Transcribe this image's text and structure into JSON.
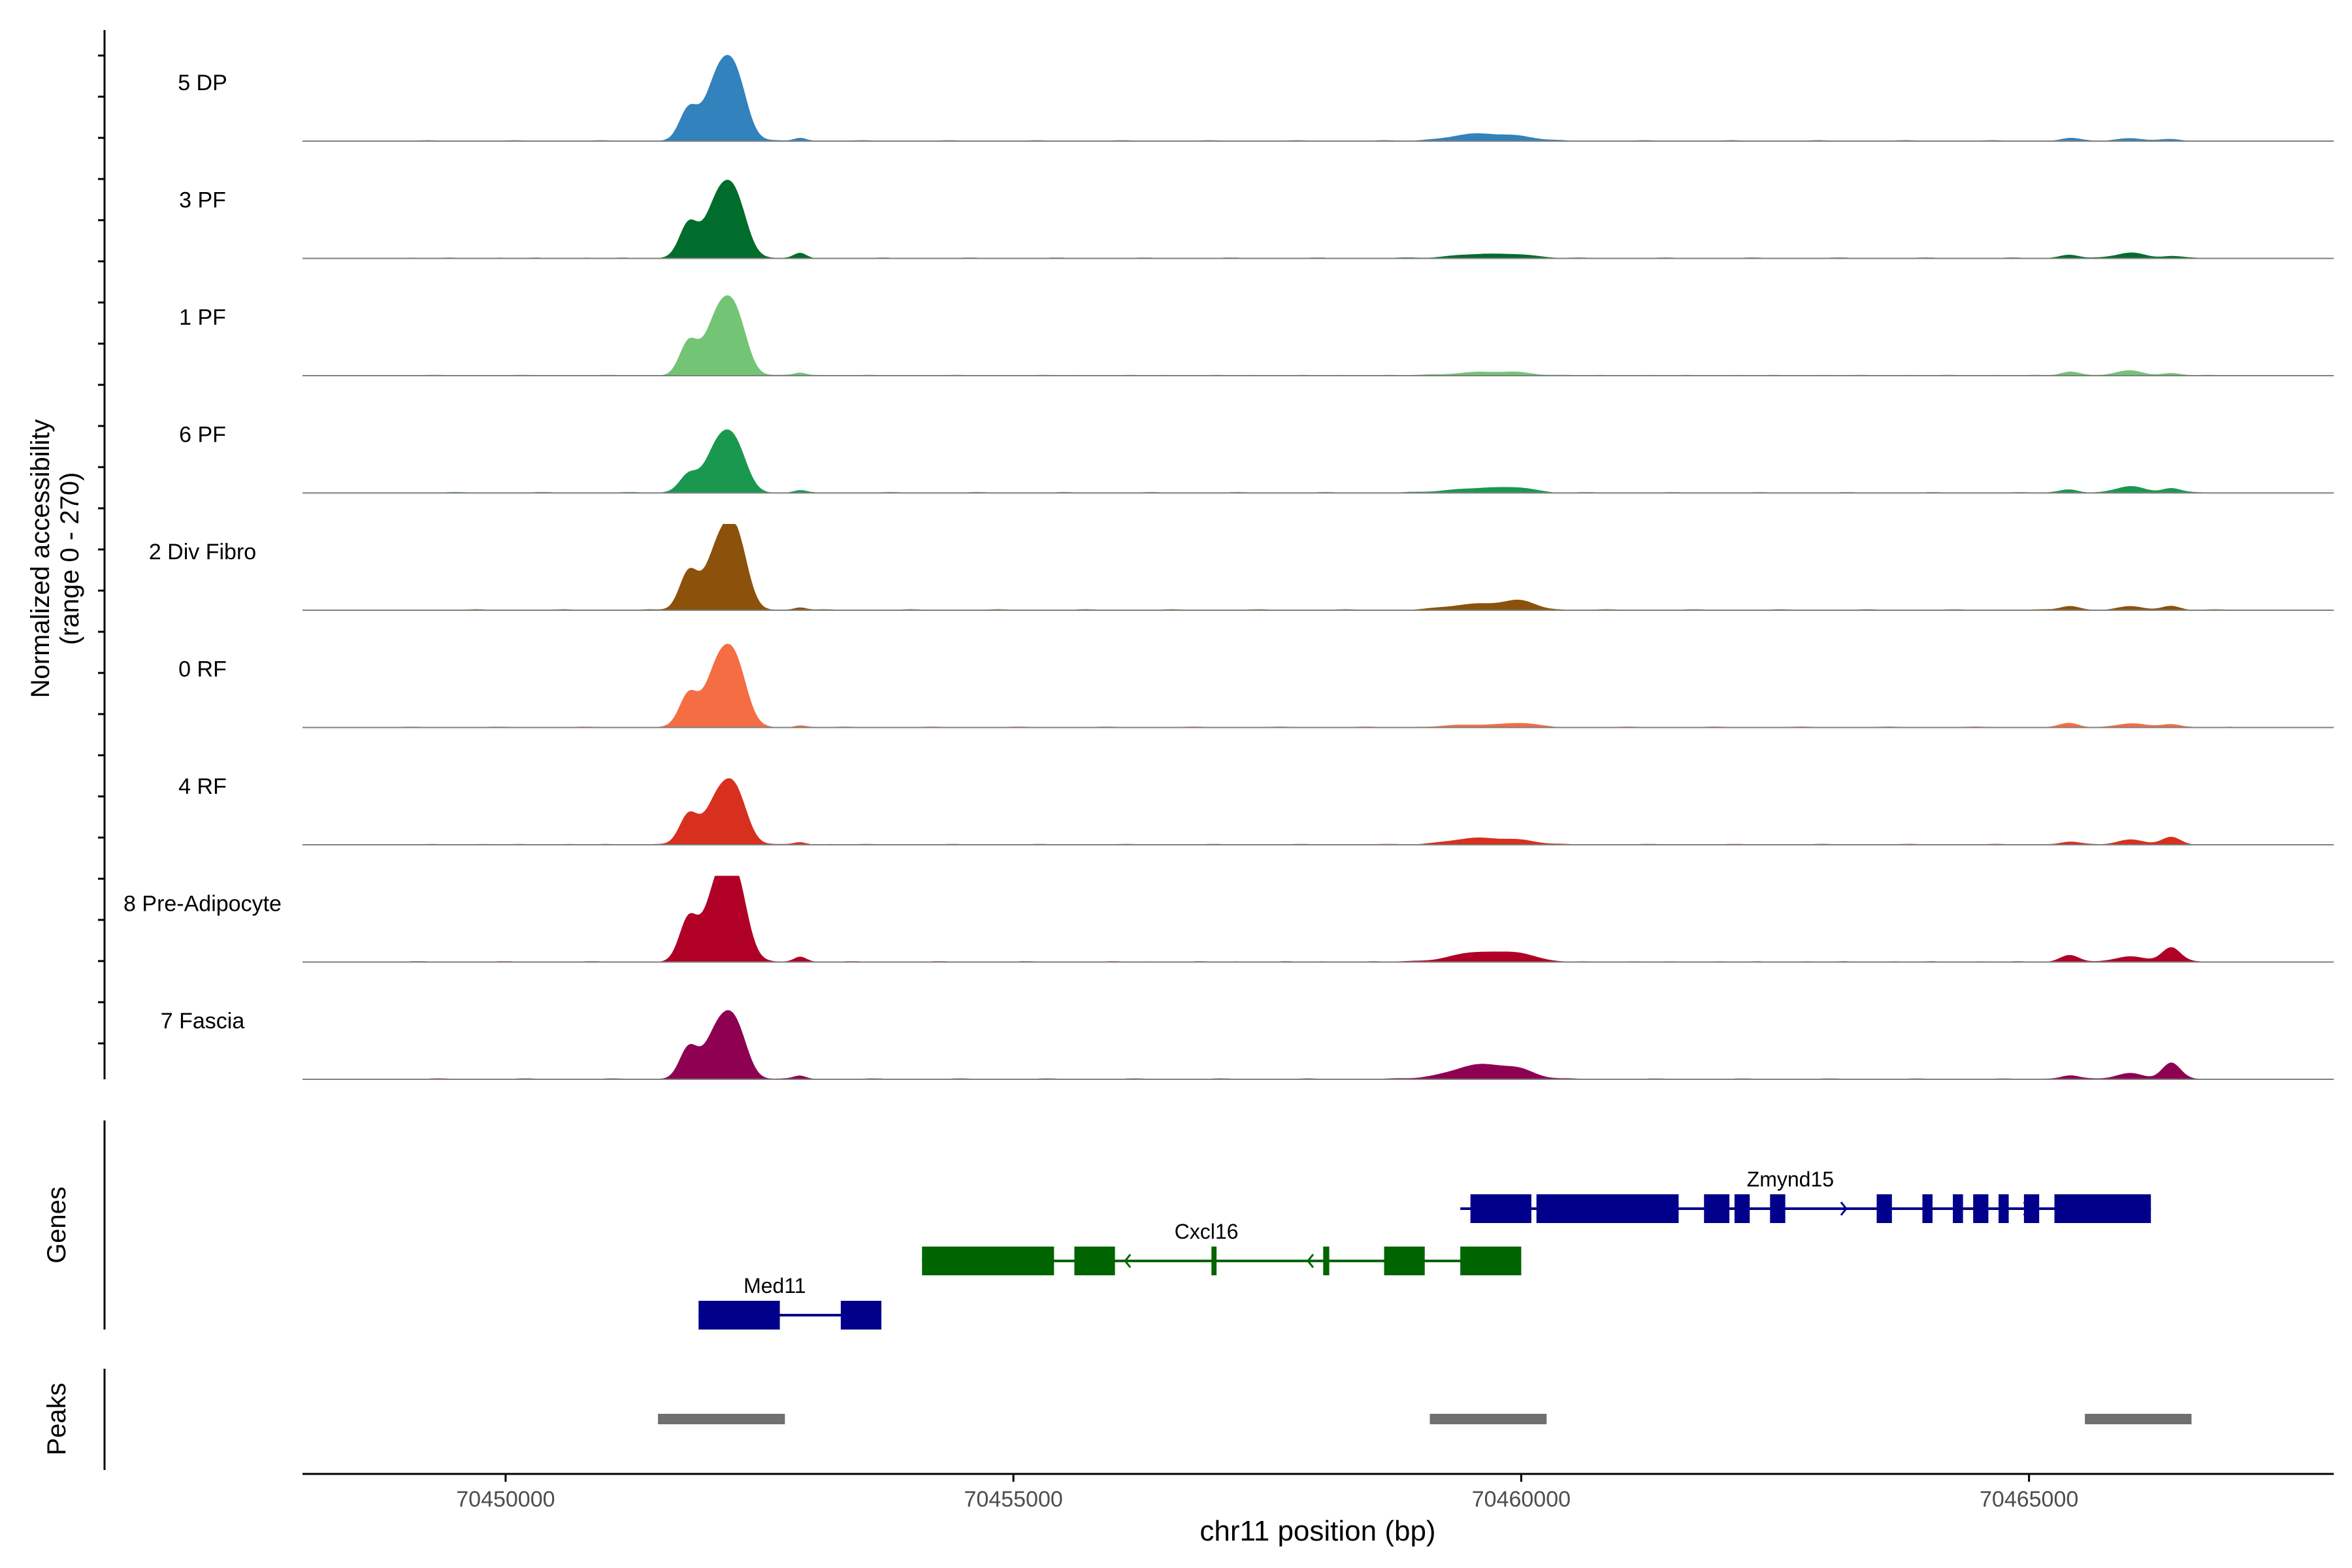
{
  "chart_data": {
    "type": "area",
    "title": "",
    "ylabel": "Normalized accessibility",
    "ylabel_range": "(range 0 - 270)",
    "yrange": [
      0,
      270
    ],
    "xlabel": "chr11 position (bp)",
    "xlim": [
      70448000,
      70468000
    ],
    "xticks": [
      {
        "value": 70450000,
        "label": "70450000"
      },
      {
        "value": 70455000,
        "label": "70455000"
      },
      {
        "value": 70460000,
        "label": "70460000"
      },
      {
        "value": 70465000,
        "label": "70465000"
      }
    ],
    "peak_shape": {
      "positions": [
        70451800,
        70452100,
        70452280,
        70452900,
        70459600,
        70460000,
        70465400,
        70466000,
        70466400
      ],
      "widths": [
        90,
        130,
        110,
        60,
        280,
        150,
        90,
        130,
        90
      ]
    },
    "series": [
      {
        "name": "5 DP",
        "color": "#3182BD",
        "peak_heights": [
          95,
          205,
          150,
          10,
          22,
          8,
          8,
          8,
          4
        ]
      },
      {
        "name": "3 PF",
        "color": "#006D2C",
        "peak_heights": [
          105,
          185,
          140,
          15,
          12,
          8,
          10,
          18,
          6
        ]
      },
      {
        "name": "1 PF",
        "color": "#74C476",
        "peak_heights": [
          100,
          190,
          140,
          8,
          10,
          6,
          12,
          15,
          6
        ]
      },
      {
        "name": "6 PF",
        "color": "#1A9850",
        "peak_heights": [
          55,
          150,
          110,
          6,
          15,
          10,
          10,
          20,
          15
        ]
      },
      {
        "name": "2 Div Fibro",
        "color": "#8C510A",
        "peak_heights": [
          115,
          195,
          185,
          8,
          20,
          22,
          12,
          10,
          12
        ]
      },
      {
        "name": "0 RF",
        "color": "#F46D43",
        "peak_heights": [
          100,
          195,
          150,
          5,
          8,
          10,
          12,
          12,
          10
        ]
      },
      {
        "name": "4 RF",
        "color": "#D7301F",
        "peak_heights": [
          90,
          150,
          125,
          8,
          20,
          8,
          8,
          15,
          22
        ]
      },
      {
        "name": "8 Pre-Adipocyte",
        "color": "#B10026",
        "peak_heights": [
          130,
          250,
          200,
          15,
          30,
          18,
          20,
          18,
          45
        ]
      },
      {
        "name": "7 Fascia",
        "color": "#8E0152",
        "peak_heights": [
          95,
          160,
          125,
          10,
          45,
          18,
          12,
          18,
          50
        ]
      }
    ],
    "genes_label": "Genes",
    "genes": [
      {
        "name": "Med11",
        "strand": "+",
        "color": "#00008B",
        "start": 70451900,
        "end": 70453700,
        "exons": [
          [
            70451900,
            70452700
          ],
          [
            70453300,
            70453700
          ]
        ]
      },
      {
        "name": "Cxcl16",
        "strand": "-",
        "color": "#006400",
        "start": 70454100,
        "end": 70460000,
        "exons": [
          [
            70454100,
            70455400
          ],
          [
            70455600,
            70456000
          ],
          [
            70456950,
            70457000
          ],
          [
            70458050,
            70458110
          ],
          [
            70458650,
            70459050
          ],
          [
            70459400,
            70460000
          ]
        ]
      },
      {
        "name": "Zmynd15",
        "strand": "+",
        "color": "#00008B",
        "start": 70459400,
        "end": 70466200,
        "exons": [
          [
            70459500,
            70460100
          ],
          [
            70460150,
            70461550
          ],
          [
            70461800,
            70462050
          ],
          [
            70462100,
            70462250
          ],
          [
            70462450,
            70462600
          ],
          [
            70463500,
            70463650
          ],
          [
            70463950,
            70464050
          ],
          [
            70464250,
            70464350
          ],
          [
            70464450,
            70464600
          ],
          [
            70464700,
            70464800
          ],
          [
            70464950,
            70465100
          ],
          [
            70465250,
            70466200
          ]
        ]
      }
    ],
    "peaks_label": "Peaks",
    "peaks": [
      [
        70451500,
        70452750
      ],
      [
        70459100,
        70460250
      ],
      [
        70465550,
        70466600
      ]
    ]
  }
}
